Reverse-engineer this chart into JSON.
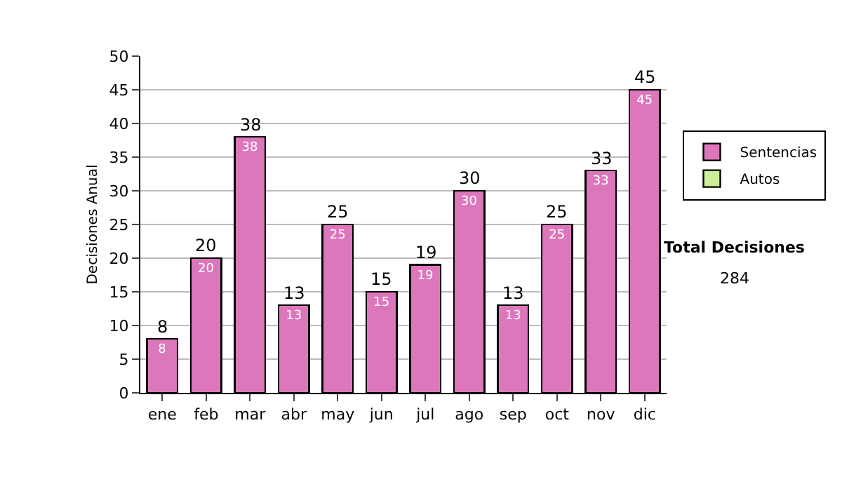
{
  "chart_data": {
    "type": "bar",
    "ylabel": "Decisiones Anual",
    "categories": [
      "ene",
      "feb",
      "mar",
      "abr",
      "may",
      "jun",
      "jul",
      "ago",
      "sep",
      "oct",
      "nov",
      "dic"
    ],
    "series": [
      {
        "name": "Sentencias",
        "color": "#dd77bb",
        "values": [
          8,
          20,
          38,
          13,
          25,
          15,
          19,
          30,
          13,
          25,
          33,
          45
        ]
      },
      {
        "name": "Autos",
        "color": "#ccee99",
        "values": [
          null,
          null,
          null,
          null,
          null,
          null,
          null,
          null,
          null,
          null,
          null,
          null
        ]
      }
    ],
    "stacked": true,
    "data_labels": true,
    "totals": [
      "8",
      "20",
      "38",
      "13",
      "25",
      "15",
      "19",
      "30",
      "13",
      "25",
      "33",
      "45"
    ],
    "ylim": [
      0,
      50
    ],
    "yticks": [
      0,
      5,
      10,
      15,
      20,
      25,
      30,
      35,
      40,
      45,
      50
    ],
    "grid": "y",
    "legend": "right",
    "annotations": [
      "Total Decisiones",
      "284"
    ]
  }
}
